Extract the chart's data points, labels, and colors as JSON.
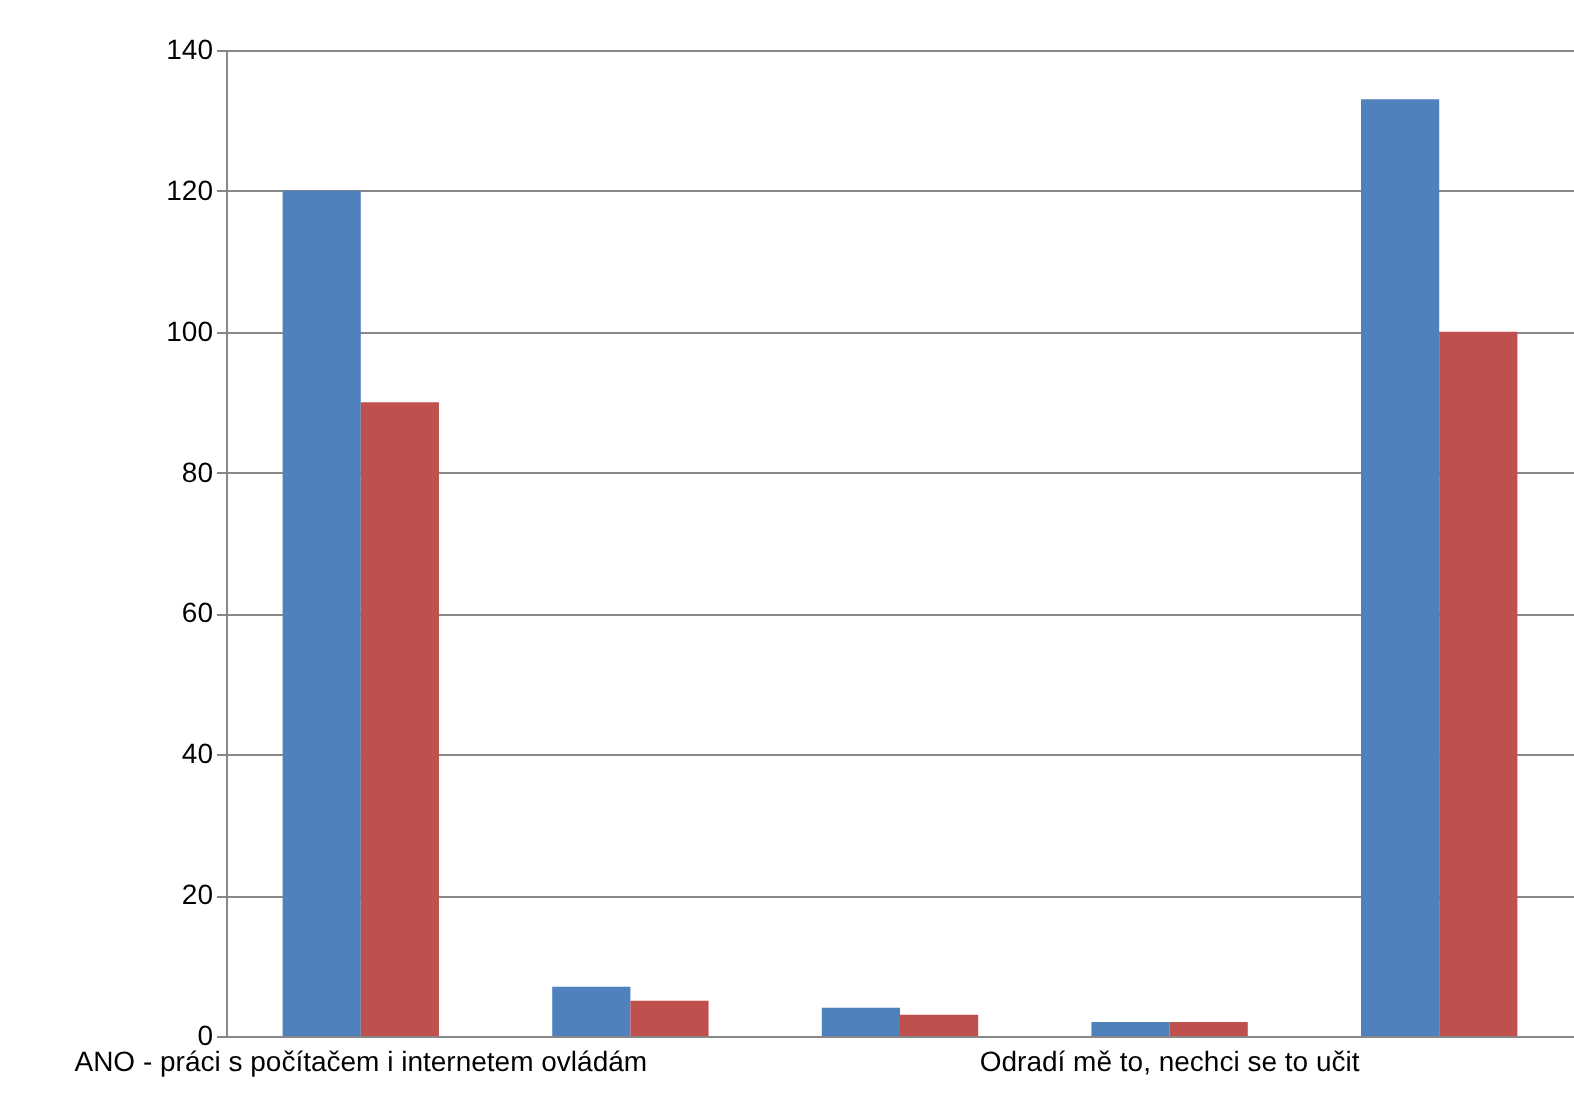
{
  "chart_data": {
    "type": "bar",
    "categories": [
      "ANO - práci s počítačem i internetem ovládám",
      null,
      null,
      "Odradí mě to, nechci se to učit",
      null
    ],
    "series": [
      {
        "color": "#4f81bd",
        "values": [
          120,
          7,
          4,
          2,
          133
        ]
      },
      {
        "color": "#c0504d",
        "values": [
          90,
          5,
          3,
          2,
          100
        ]
      }
    ],
    "ylim": [
      0,
      140
    ],
    "yticks": [
      0,
      20,
      40,
      60,
      80,
      100,
      120,
      140
    ],
    "grid": "y",
    "legend": false
  }
}
